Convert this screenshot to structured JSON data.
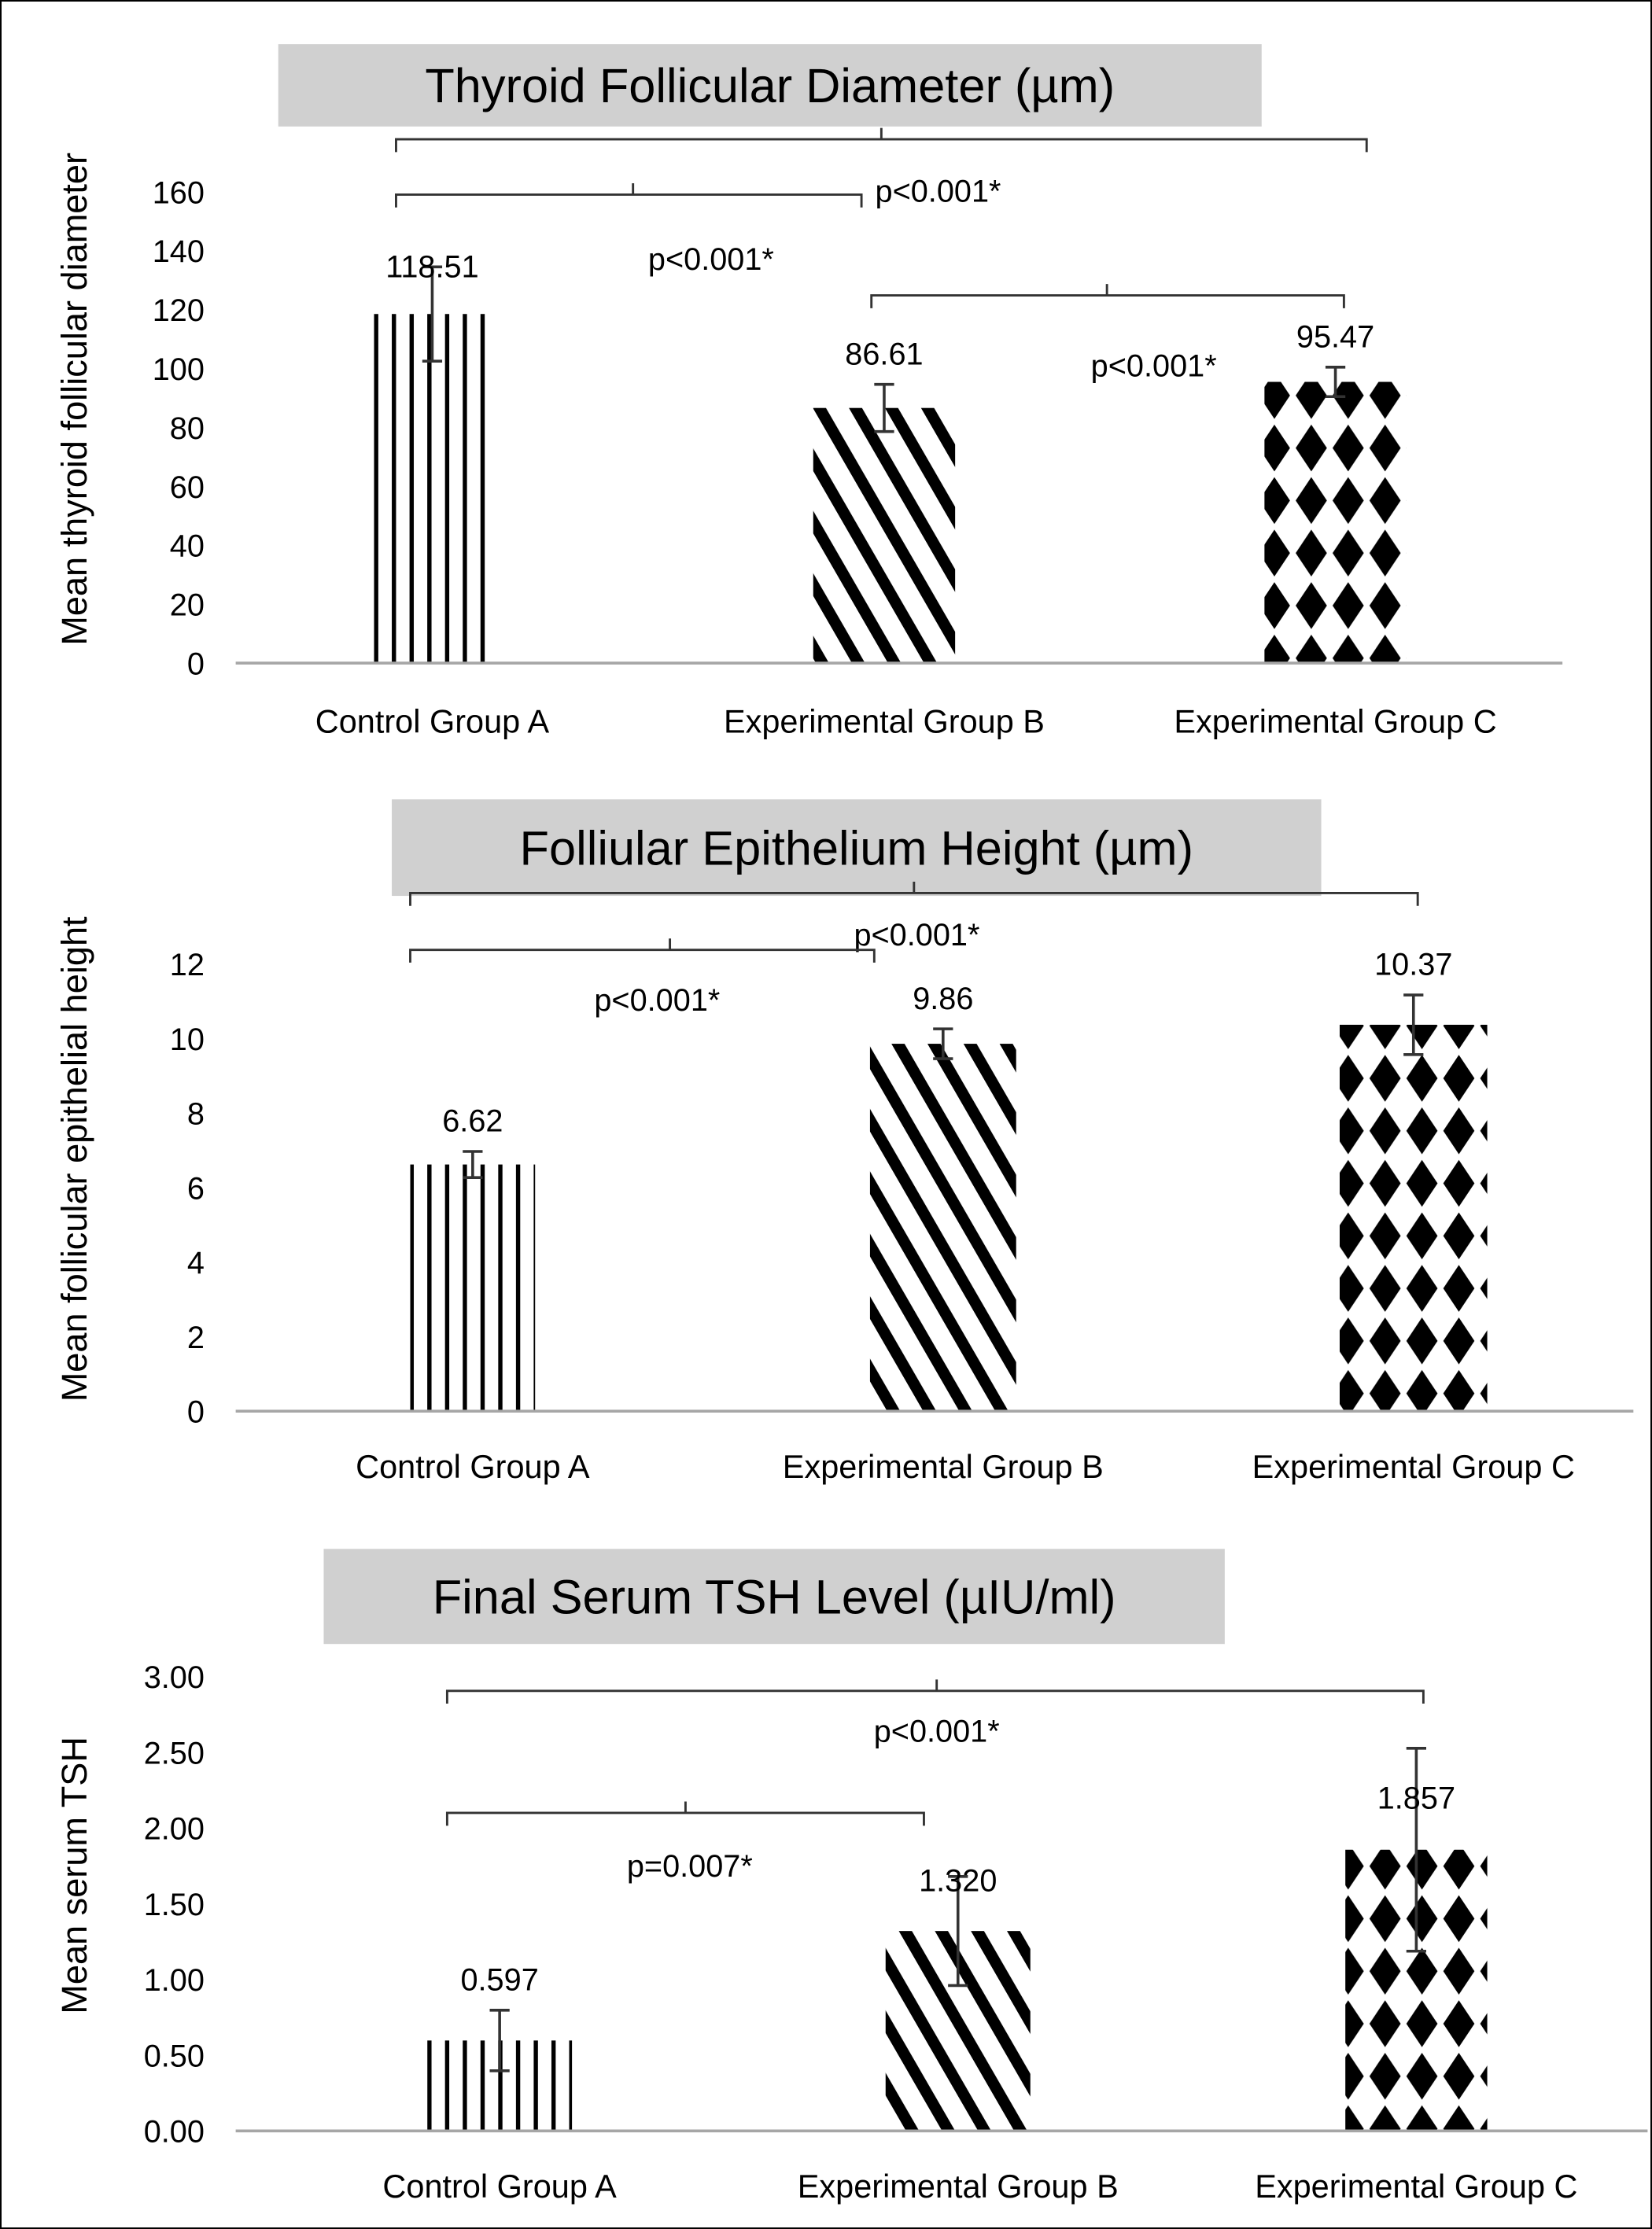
{
  "chart_data": [
    {
      "type": "bar",
      "title": "Thyroid Follicular Diameter (µm)",
      "ylabel": "Mean  thyroid follicular diameter",
      "xlabel": "",
      "categories": [
        "Control Group A",
        "Experimental Group B",
        "Experimental Group C"
      ],
      "values": [
        118.51,
        86.61,
        95.47
      ],
      "value_labels": [
        "118.51",
        "86.61",
        "95.47"
      ],
      "error_bars": [
        16,
        8,
        5
      ],
      "ylim": [
        0,
        160
      ],
      "yticks": [
        0,
        20,
        40,
        60,
        80,
        100,
        120,
        140,
        160
      ],
      "ytick_labels": [
        "0",
        "20",
        "40",
        "60",
        "80",
        "100",
        "120",
        "140",
        "160"
      ],
      "patterns": [
        "vertical-stripes",
        "diagonal-stripes",
        "diamonds"
      ],
      "comparisons": [
        {
          "from": 0,
          "to": 2,
          "label": "p<0.001*"
        },
        {
          "from": 0,
          "to": 1,
          "label": "p<0.001*"
        },
        {
          "from": 1,
          "to": 2,
          "label": "p<0.001*"
        }
      ],
      "grid": false
    },
    {
      "type": "bar",
      "title": "Folliular Epithelium Height (µm)",
      "ylabel": "Mean follicular epithelial height",
      "xlabel": "",
      "categories": [
        "Control Group A",
        "Experimental Group B",
        "Experimental Group C"
      ],
      "values": [
        6.62,
        9.86,
        10.37
      ],
      "value_labels": [
        "6.62",
        "9.86",
        "10.37"
      ],
      "error_bars": [
        0.35,
        0.4,
        0.8
      ],
      "ylim": [
        0,
        12
      ],
      "yticks": [
        0,
        2,
        4,
        6,
        8,
        10,
        12
      ],
      "ytick_labels": [
        "0",
        "2",
        "4",
        "6",
        "8",
        "10",
        "12"
      ],
      "patterns": [
        "vertical-stripes",
        "diagonal-stripes",
        "diamonds"
      ],
      "comparisons": [
        {
          "from": 0,
          "to": 2,
          "label": "p<0.001*"
        },
        {
          "from": 0,
          "to": 1,
          "label": "p<0.001*"
        }
      ],
      "grid": false
    },
    {
      "type": "bar",
      "title": "Final Serum TSH Level (µIU/ml)",
      "ylabel": "Mean  serum TSH",
      "xlabel": "",
      "categories": [
        "Control Group A",
        "Experimental Group B",
        "Experimental Group C"
      ],
      "values": [
        0.597,
        1.32,
        1.857
      ],
      "value_labels": [
        "0.597",
        "1.320",
        "1.857"
      ],
      "error_bars": [
        0.2,
        0.36,
        0.67
      ],
      "ylim": [
        0,
        3
      ],
      "yticks": [
        0,
        0.5,
        1,
        1.5,
        2,
        2.5,
        3
      ],
      "ytick_labels": [
        "0.00",
        "0.50",
        "1.00",
        "1.50",
        "2.00",
        "2.50",
        "3.00"
      ],
      "patterns": [
        "vertical-stripes",
        "diagonal-stripes",
        "diamonds"
      ],
      "comparisons": [
        {
          "from": 0,
          "to": 2,
          "label": "p<0.001*"
        },
        {
          "from": 0,
          "to": 1,
          "label": "p=0.007*"
        }
      ],
      "grid": false
    }
  ]
}
